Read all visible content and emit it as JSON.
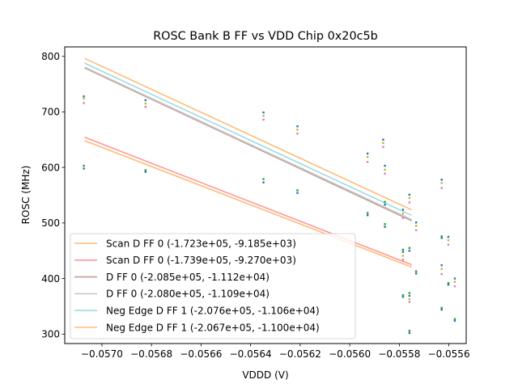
{
  "chart_data": {
    "type": "scatter",
    "title": "ROSC Bank B FF vs VDD Chip 0x20c5b",
    "xlabel": "VDDD (V)",
    "ylabel": "ROSC (MHz)",
    "xlim": [
      -0.05715,
      -0.05553
    ],
    "ylim": [
      283,
      817
    ],
    "x_ticks": [
      -0.057,
      -0.0568,
      -0.0566,
      -0.0564,
      -0.0562,
      -0.056,
      -0.0558,
      -0.0556
    ],
    "x_tick_labels": [
      "−0.0570",
      "−0.0568",
      "−0.0566",
      "−0.0564",
      "−0.0562",
      "−0.0560",
      "−0.0558",
      "−0.0556"
    ],
    "y_ticks": [
      300,
      400,
      500,
      600,
      700,
      800
    ],
    "y_tick_labels": [
      "300",
      "400",
      "500",
      "600",
      "700",
      "800"
    ],
    "grid": false,
    "legend_position": "lower-left",
    "fit_x_range": [
      -0.05707,
      -0.05575
    ],
    "fit_lines": [
      {
        "name": "Scan D FF 0 (-1.723e+05, -9.185e+03)",
        "slope": -172300,
        "intercept": -9185,
        "color": "#ffbb78"
      },
      {
        "name": "Scan D FF 0 (-1.739e+05, -9.270e+03)",
        "slope": -173900,
        "intercept": -9270,
        "color": "#ff9896"
      },
      {
        "name": "D FF 0 (-2.085e+05, -1.112e+04)",
        "slope": -208500,
        "intercept": -11120,
        "color": "#c49c94"
      },
      {
        "name": "D FF 0 (-2.080e+05, -1.109e+04)",
        "slope": -208000,
        "intercept": -11090,
        "color": "#c7c7c7"
      },
      {
        "name": "Neg Edge D FF 1 (-2.076e+05, -1.106e+04)",
        "slope": -207600,
        "intercept": -11060,
        "color": "#9edae5"
      },
      {
        "name": "Neg Edge D FF 1 (-2.067e+05, -1.100e+04)",
        "slope": -206700,
        "intercept": -11000,
        "color": "#ffbb78"
      }
    ],
    "scatter_series": [
      {
        "name": "blue",
        "color": "#1f77b4",
        "points": [
          [
            -0.057073,
            728
          ],
          [
            -0.057073,
            598
          ],
          [
            -0.056824,
            721
          ],
          [
            -0.056824,
            592
          ],
          [
            -0.056348,
            699
          ],
          [
            -0.056348,
            573
          ],
          [
            -0.056211,
            674
          ],
          [
            -0.056211,
            554
          ],
          [
            -0.055928,
            625
          ],
          [
            -0.055928,
            514
          ],
          [
            -0.055865,
            650
          ],
          [
            -0.055858,
            603
          ],
          [
            -0.055858,
            533
          ],
          [
            -0.055858,
            493
          ],
          [
            -0.055785,
            524
          ],
          [
            -0.055785,
            448
          ],
          [
            -0.055785,
            367
          ],
          [
            -0.055759,
            551
          ],
          [
            -0.055759,
            450
          ],
          [
            -0.055759,
            369
          ],
          [
            -0.055759,
            302
          ],
          [
            -0.055732,
            501
          ],
          [
            -0.055732,
            409
          ],
          [
            -0.055629,
            578
          ],
          [
            -0.055629,
            473
          ],
          [
            -0.055629,
            424
          ],
          [
            -0.055629,
            344
          ],
          [
            -0.055602,
            475
          ],
          [
            -0.055602,
            389
          ],
          [
            -0.055576,
            400
          ],
          [
            -0.055576,
            324
          ]
        ]
      },
      {
        "name": "green",
        "color": "#2ca02c",
        "points": [
          [
            -0.057073,
            603
          ],
          [
            -0.056824,
            595
          ],
          [
            -0.056348,
            579
          ],
          [
            -0.056211,
            559
          ],
          [
            -0.055928,
            518
          ],
          [
            -0.055858,
            538
          ],
          [
            -0.055858,
            498
          ],
          [
            -0.055785,
            452
          ],
          [
            -0.055785,
            370
          ],
          [
            -0.055759,
            455
          ],
          [
            -0.055759,
            374
          ],
          [
            -0.055759,
            306
          ],
          [
            -0.055732,
            413
          ],
          [
            -0.055629,
            476
          ],
          [
            -0.055629,
            347
          ],
          [
            -0.055602,
            392
          ],
          [
            -0.055576,
            327
          ]
        ]
      },
      {
        "name": "olive",
        "color": "#bcbd22",
        "points": [
          [
            -0.057073,
            724
          ],
          [
            -0.056824,
            715
          ],
          [
            -0.056348,
            693
          ],
          [
            -0.056211,
            668
          ],
          [
            -0.055928,
            619
          ],
          [
            -0.055865,
            644
          ],
          [
            -0.055858,
            596
          ],
          [
            -0.055785,
            517
          ],
          [
            -0.055785,
            441
          ],
          [
            -0.055759,
            545
          ],
          [
            -0.055759,
            363
          ],
          [
            -0.055732,
            495
          ],
          [
            -0.055629,
            572
          ],
          [
            -0.055629,
            417
          ],
          [
            -0.055602,
            469
          ],
          [
            -0.055576,
            394
          ]
        ]
      },
      {
        "name": "pink",
        "color": "#e377c2",
        "points": [
          [
            -0.057073,
            716
          ],
          [
            -0.056824,
            709
          ],
          [
            -0.056348,
            686
          ],
          [
            -0.056211,
            661
          ],
          [
            -0.055928,
            610
          ],
          [
            -0.055865,
            637
          ],
          [
            -0.055858,
            589
          ],
          [
            -0.055785,
            509
          ],
          [
            -0.055785,
            434
          ],
          [
            -0.055759,
            537
          ],
          [
            -0.055759,
            358
          ],
          [
            -0.055732,
            487
          ],
          [
            -0.055629,
            563
          ],
          [
            -0.055629,
            408
          ],
          [
            -0.055602,
            461
          ],
          [
            -0.055576,
            386
          ]
        ]
      }
    ]
  }
}
